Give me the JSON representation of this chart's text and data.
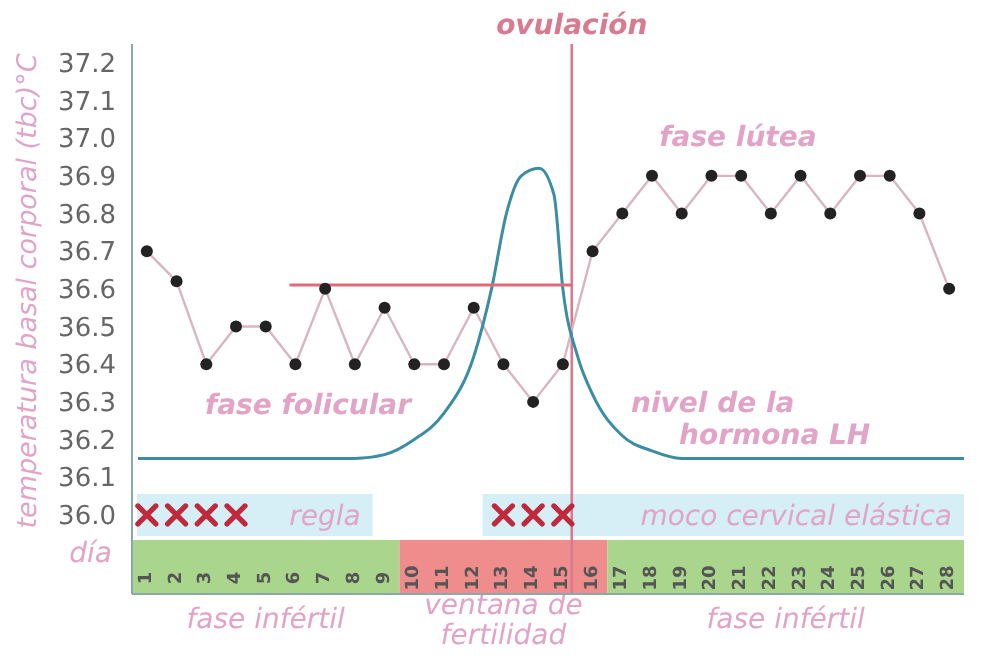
{
  "chart_data": {
    "type": "line",
    "ylabel": "temperatura basal corporal (tbc)°C",
    "xlabel": "día",
    "xlim": [
      0.5,
      28.5
    ],
    "xticks": [
      1,
      2,
      3,
      4,
      5,
      6,
      7,
      8,
      9,
      10,
      11,
      12,
      13,
      14,
      15,
      16,
      17,
      18,
      19,
      20,
      21,
      22,
      23,
      24,
      25,
      26,
      27,
      28
    ],
    "ylim": [
      35.79,
      37.25
    ],
    "yticks": [
      {
        "value": 36.0,
        "label": "36.0"
      },
      36.1,
      36.2,
      36.3,
      36.4,
      36.5,
      36.6,
      36.7,
      36.8,
      36.9,
      {
        "value": 37.0,
        "label": "37.0"
      },
      37.1,
      37.2
    ],
    "grid": false,
    "legend": false,
    "series": [
      {
        "type": "line",
        "color": "#222222",
        "marker": "circle",
        "x": [
          1,
          2,
          3,
          4,
          5,
          6,
          7,
          8,
          9,
          10,
          11,
          12,
          13,
          14,
          15,
          16,
          17,
          18,
          19,
          20,
          21,
          22,
          23,
          24,
          25,
          26,
          27,
          28
        ],
        "values": [
          36.7,
          36.62,
          36.4,
          36.5,
          36.5,
          36.4,
          36.6,
          36.4,
          36.55,
          36.4,
          36.4,
          36.55,
          36.4,
          36.3,
          36.4,
          36.7,
          36.8,
          36.9,
          36.8,
          36.9,
          36.9,
          36.8,
          36.9,
          36.8,
          36.9,
          36.9,
          36.8,
          36.6
        ]
      },
      {
        "type": "line",
        "name": "nivel de la hormona LH",
        "color": "#3a8ea3",
        "marker": "none",
        "x": [
          0.7,
          8,
          9,
          10,
          11,
          12,
          12.6,
          13.1,
          13.6,
          14.2,
          14.7,
          15,
          15.5,
          16,
          17,
          18,
          19,
          28.5
        ],
        "values": [
          36.15,
          36.15,
          36.16,
          36.2,
          36.27,
          36.42,
          36.6,
          36.8,
          36.9,
          36.92,
          36.85,
          36.6,
          36.42,
          36.32,
          36.21,
          36.17,
          36.15,
          36.15
        ]
      },
      {
        "type": "line",
        "color": "#e06a78",
        "marker": "none",
        "x": [
          5.8,
          15.3
        ],
        "values": [
          36.61,
          36.61
        ]
      },
      {
        "type": "scatter",
        "color": "#c0283c",
        "marker": "cross",
        "x": [
          1,
          2,
          3,
          4,
          13,
          14,
          15
        ],
        "values": [
          36.0,
          36.0,
          36.0,
          36.0,
          36.0,
          36.0,
          36.0
        ]
      }
    ],
    "ref_lines": [
      {
        "axis": "x",
        "value": 15.3,
        "label": "ovulación",
        "color": "#d87a90"
      }
    ],
    "bands": [
      {
        "axis": "x",
        "from": 0.67,
        "to": 8.6,
        "label": "regla",
        "color": "#d6eef6"
      },
      {
        "axis": "x",
        "from": 12.3,
        "to": 28.5,
        "label": "moco cervical elástica",
        "color": "#d6eef6"
      },
      {
        "axis": "x",
        "from": 0.5,
        "to": 9.5,
        "label": "fase infértil",
        "color": "#a9d68c"
      },
      {
        "axis": "x",
        "from": 9.5,
        "to": 16.5,
        "label": "ventana de fertilidad",
        "color": "#ef8c8c"
      },
      {
        "axis": "x",
        "from": 16.5,
        "to": 28.5,
        "label": "fase infértil",
        "color": "#a9d68c"
      }
    ],
    "annotations": [
      "fase folicular",
      "fase lútea"
    ]
  }
}
